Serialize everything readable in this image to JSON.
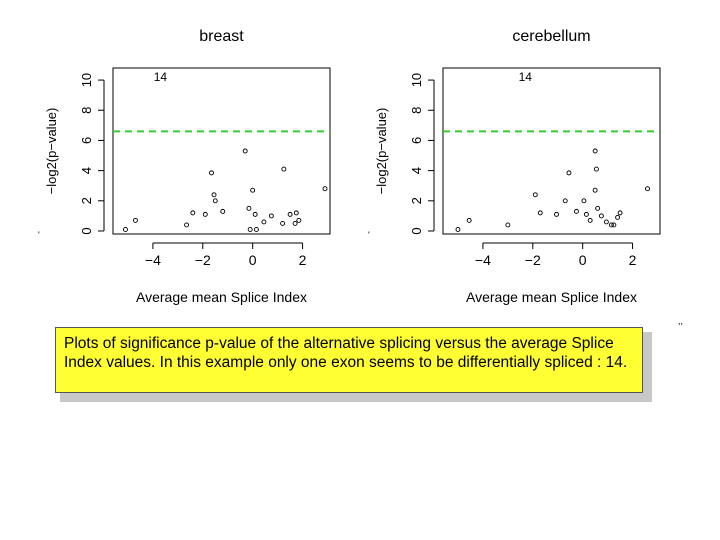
{
  "chart_data": [
    {
      "type": "scatter",
      "title": "breast",
      "xlabel": "Average mean Splice Index",
      "ylabel": "−log2(p−value)",
      "xlim": [
        -5.6,
        3.1
      ],
      "ylim": [
        -0.2,
        10.8
      ],
      "xticks": [
        -4,
        -2,
        0,
        2
      ],
      "xtick_labels": [
        "−4",
        "−2",
        "0",
        "2"
      ],
      "yticks": [
        0,
        2,
        4,
        6,
        8,
        10
      ],
      "ytick_labels": [
        "0",
        "2",
        "4",
        "6",
        "8",
        "10"
      ],
      "threshold": 6.6,
      "threshold_color": "#33cc33",
      "annotation": {
        "text": "14",
        "x": -3.7,
        "y": 10.2
      },
      "points": [
        {
          "x": -5.1,
          "y": 0.1
        },
        {
          "x": -4.7,
          "y": 0.7
        },
        {
          "x": -2.65,
          "y": 0.4
        },
        {
          "x": -2.4,
          "y": 1.2
        },
        {
          "x": -1.9,
          "y": 1.1
        },
        {
          "x": -1.65,
          "y": 3.85
        },
        {
          "x": -1.55,
          "y": 2.4
        },
        {
          "x": -1.5,
          "y": 2.0
        },
        {
          "x": -1.2,
          "y": 1.3
        },
        {
          "x": -0.3,
          "y": 5.3
        },
        {
          "x": -0.15,
          "y": 1.5
        },
        {
          "x": -0.1,
          "y": 0.1
        },
        {
          "x": 0.0,
          "y": 2.7
        },
        {
          "x": 0.1,
          "y": 1.1
        },
        {
          "x": 0.15,
          "y": 0.1
        },
        {
          "x": 0.45,
          "y": 0.6
        },
        {
          "x": 0.75,
          "y": 1.0
        },
        {
          "x": 1.2,
          "y": 0.5
        },
        {
          "x": 1.25,
          "y": 4.1
        },
        {
          "x": 1.5,
          "y": 1.1
        },
        {
          "x": 1.7,
          "y": 0.5
        },
        {
          "x": 1.75,
          "y": 1.2
        },
        {
          "x": 1.85,
          "y": 0.7
        },
        {
          "x": 2.9,
          "y": 2.8
        }
      ]
    },
    {
      "type": "scatter",
      "title": "cerebellum",
      "xlabel": "Average mean Splice Index",
      "ylabel": "−log2(p−value)",
      "xlim": [
        -5.6,
        3.1
      ],
      "ylim": [
        -0.2,
        10.8
      ],
      "xticks": [
        -4,
        -2,
        0,
        2
      ],
      "xtick_labels": [
        "−4",
        "−2",
        "0",
        "2"
      ],
      "yticks": [
        0,
        2,
        4,
        6,
        8,
        10
      ],
      "ytick_labels": [
        "0",
        "2",
        "4",
        "6",
        "8",
        "10"
      ],
      "threshold": 6.6,
      "threshold_color": "#33cc33",
      "annotation": {
        "text": "14",
        "x": -2.3,
        "y": 10.2
      },
      "points": [
        {
          "x": -5.0,
          "y": 0.1
        },
        {
          "x": -4.55,
          "y": 0.7
        },
        {
          "x": -3.0,
          "y": 0.4
        },
        {
          "x": -1.9,
          "y": 2.4
        },
        {
          "x": -1.7,
          "y": 1.2
        },
        {
          "x": -1.05,
          "y": 1.1
        },
        {
          "x": -0.7,
          "y": 2.0
        },
        {
          "x": -0.55,
          "y": 3.85
        },
        {
          "x": -0.25,
          "y": 1.3
        },
        {
          "x": 0.05,
          "y": 2.0
        },
        {
          "x": 0.15,
          "y": 1.1
        },
        {
          "x": 0.3,
          "y": 0.7
        },
        {
          "x": 0.5,
          "y": 5.3
        },
        {
          "x": 0.5,
          "y": 2.7
        },
        {
          "x": 0.55,
          "y": 4.1
        },
        {
          "x": 0.6,
          "y": 1.5
        },
        {
          "x": 0.75,
          "y": 1.0
        },
        {
          "x": 0.95,
          "y": 0.6
        },
        {
          "x": 1.15,
          "y": 0.4
        },
        {
          "x": 1.25,
          "y": 0.4
        },
        {
          "x": 1.4,
          "y": 0.9
        },
        {
          "x": 1.5,
          "y": 1.2
        },
        {
          "x": 2.6,
          "y": 2.8
        }
      ]
    }
  ],
  "caption": "Plots of significance p-value of the alternative splicing versus the average Splice Index values. In this example only one exon seems to be differentially spliced : 14.",
  "colors": {
    "caption_bg": "#ffff33",
    "threshold": "#33cc33"
  }
}
